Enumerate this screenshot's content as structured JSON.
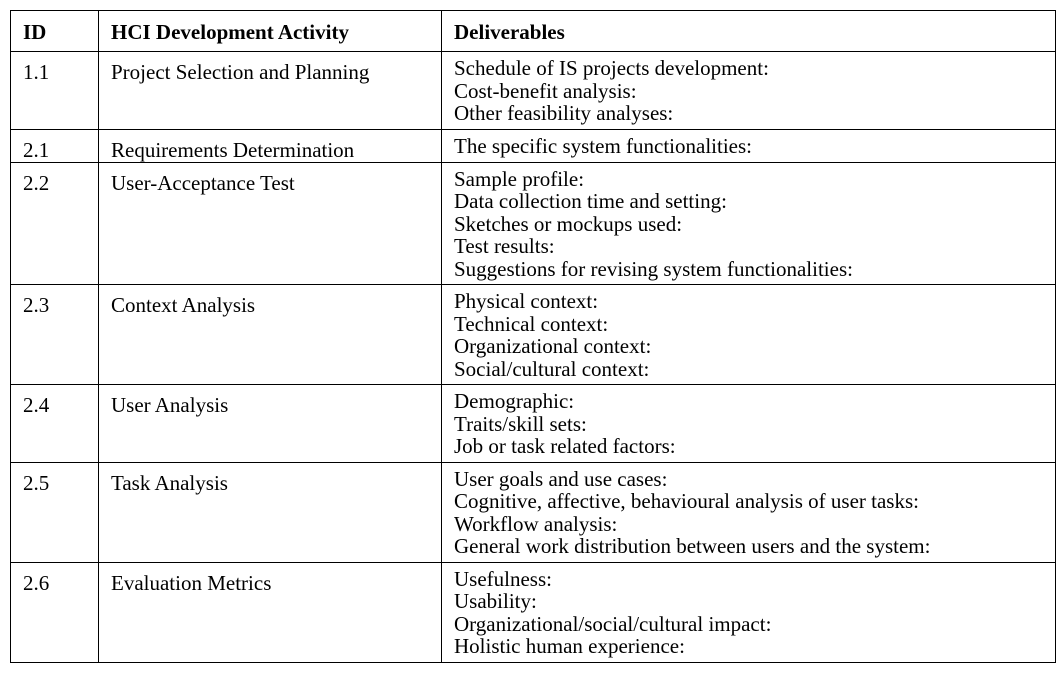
{
  "table": {
    "headers": {
      "id": "ID",
      "activity": "HCI Development Activity",
      "deliverables": "Deliverables"
    },
    "rows": [
      {
        "id": "1.1",
        "activity": "Project Selection and Planning",
        "deliverables": [
          "Schedule of IS projects development:",
          "Cost-benefit analysis:",
          "Other feasibility analyses:"
        ]
      },
      {
        "id": "2.1",
        "activity": "Requirements Determination",
        "deliverables": [
          "The specific system functionalities:"
        ]
      },
      {
        "id": "2.2",
        "activity": "User-Acceptance Test",
        "deliverables": [
          "Sample profile:",
          "Data collection time and setting:",
          "Sketches or mockups used:",
          "Test results:",
          "Suggestions for revising system functionalities:"
        ]
      },
      {
        "id": "2.3",
        "activity": "Context Analysis",
        "deliverables": [
          "Physical context:",
          "Technical context:",
          "Organizational context:",
          "Social/cultural context:"
        ]
      },
      {
        "id": "2.4",
        "activity": "User Analysis",
        "deliverables": [
          "Demographic:",
          "Traits/skill sets:",
          "Job or task related factors:"
        ]
      },
      {
        "id": "2.5",
        "activity": "Task Analysis",
        "deliverables": [
          "User goals and use cases:",
          "Cognitive, affective, behavioural analysis of user tasks:",
          "Workflow analysis:",
          "General work distribution between users and the system:"
        ]
      },
      {
        "id": "2.6",
        "activity": "Evaluation Metrics",
        "deliverables": [
          "Usefulness:",
          "Usability:",
          "Organizational/social/cultural impact:",
          "Holistic human experience:"
        ]
      }
    ]
  }
}
